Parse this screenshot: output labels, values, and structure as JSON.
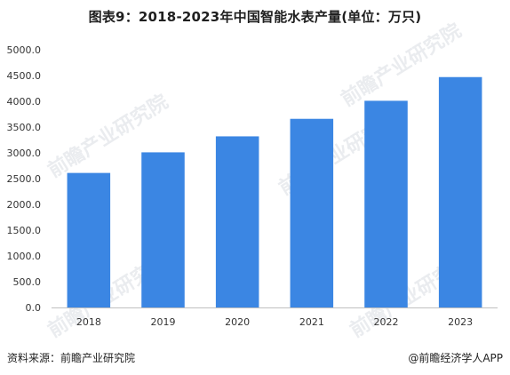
{
  "title": "图表9：2018-2023年中国智能水表产量(单位：万只)",
  "source_text": "资料来源：前瞻产业研究院",
  "credit_text": "@前瞻经济学人APP",
  "colors": {
    "bar": "#3b86e3",
    "axis": "#bfbfbf",
    "text": "#333333"
  },
  "chart_data": {
    "type": "bar",
    "title": "图表9：2018-2023年中国智能水表产量(单位：万只)",
    "categories": [
      "2018",
      "2019",
      "2020",
      "2021",
      "2022",
      "2023"
    ],
    "values": [
      2610,
      3010,
      3320,
      3660,
      4010,
      4470
    ],
    "ylim": [
      0,
      5000
    ],
    "yticks": [
      "0.0",
      "500.0",
      "1000.0",
      "1500.0",
      "2000.0",
      "2500.0",
      "3000.0",
      "3500.0",
      "4000.0",
      "4500.0",
      "5000.0"
    ],
    "grid": false,
    "legend": "none"
  }
}
